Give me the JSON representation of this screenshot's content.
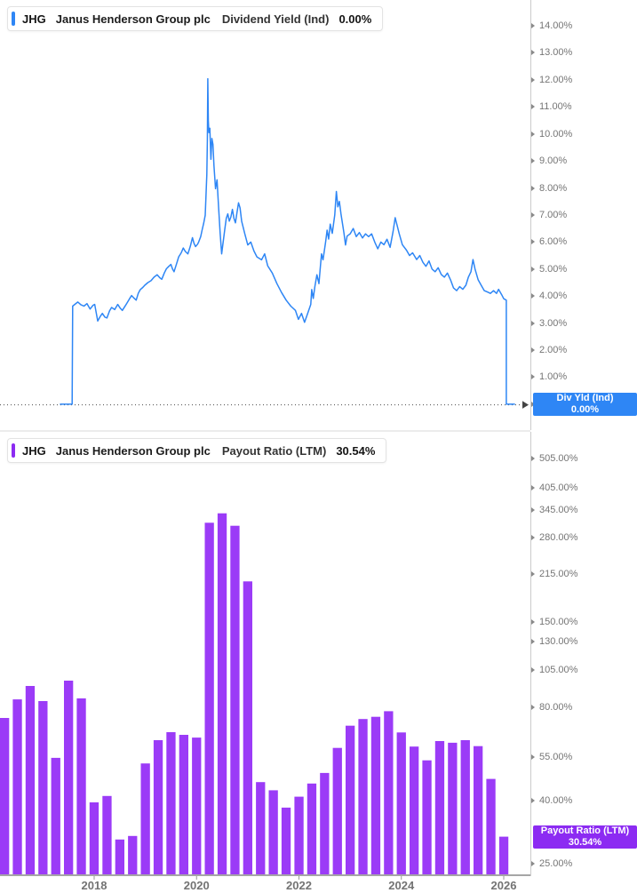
{
  "colors": {
    "line_blue": "#2E86F5",
    "badge_blue": "#2E86F5",
    "bar_purple": "#9B3BF7",
    "badge_purple": "#8C2BF2",
    "accent_blue": "#2E86F5",
    "accent_purple": "#8C2BF2",
    "axis_label": "#757575",
    "axis_line": "#cbcbcb",
    "baseline": "#a6a6a6",
    "dotted_line": "#4a4a4a"
  },
  "panels": [
    {
      "header": {
        "ticker": "JHG",
        "company": "Janus Henderson Group plc",
        "metric": "Dividend Yield (Ind)",
        "value": "0.00%"
      },
      "badge": {
        "label": "Div Yld (Ind)",
        "value": "0.00%"
      }
    },
    {
      "header": {
        "ticker": "JHG",
        "company": "Janus Henderson Group plc",
        "metric": "Payout Ratio (LTM)",
        "value": "30.54%"
      },
      "badge": {
        "label": "Payout Ratio (LTM)",
        "value": "30.54%"
      }
    }
  ],
  "chart_data": [
    {
      "type": "line",
      "title": "JHG Dividend Yield (Ind)",
      "ylabel": "Dividend Yield %",
      "yticks": [
        14,
        13,
        12,
        11,
        10,
        9,
        8,
        7,
        6,
        5,
        4,
        3,
        2,
        1,
        0
      ],
      "ylim": [
        -0.9,
        15.0
      ],
      "x_range": [
        2016.16,
        2026.49
      ],
      "grid": false,
      "legend_position": "right-badge",
      "current_value": 0.0,
      "series": [
        {
          "name": "Div Yld (Ind)",
          "points": [
            [
              2017.33,
              0
            ],
            [
              2017.57,
              0
            ],
            [
              2017.58,
              3.63
            ],
            [
              2017.68,
              3.78
            ],
            [
              2017.74,
              3.68
            ],
            [
              2017.8,
              3.63
            ],
            [
              2017.86,
              3.72
            ],
            [
              2017.92,
              3.52
            ],
            [
              2017.98,
              3.66
            ],
            [
              2018.01,
              3.69
            ],
            [
              2018.07,
              3.08
            ],
            [
              2018.12,
              3.25
            ],
            [
              2018.16,
              3.36
            ],
            [
              2018.21,
              3.22
            ],
            [
              2018.25,
              3.19
            ],
            [
              2018.3,
              3.45
            ],
            [
              2018.34,
              3.58
            ],
            [
              2018.4,
              3.5
            ],
            [
              2018.46,
              3.69
            ],
            [
              2018.51,
              3.55
            ],
            [
              2018.55,
              3.47
            ],
            [
              2018.6,
              3.62
            ],
            [
              2018.64,
              3.74
            ],
            [
              2018.69,
              3.9
            ],
            [
              2018.73,
              4.02
            ],
            [
              2018.78,
              3.92
            ],
            [
              2018.82,
              3.85
            ],
            [
              2018.86,
              4.1
            ],
            [
              2018.9,
              4.24
            ],
            [
              2018.95,
              4.32
            ],
            [
              2018.99,
              4.4
            ],
            [
              2019.05,
              4.5
            ],
            [
              2019.11,
              4.57
            ],
            [
              2019.17,
              4.7
            ],
            [
              2019.23,
              4.79
            ],
            [
              2019.28,
              4.68
            ],
            [
              2019.32,
              4.62
            ],
            [
              2019.37,
              4.85
            ],
            [
              2019.41,
              5.01
            ],
            [
              2019.46,
              5.1
            ],
            [
              2019.5,
              5.17
            ],
            [
              2019.53,
              5.0
            ],
            [
              2019.56,
              4.9
            ],
            [
              2019.61,
              5.2
            ],
            [
              2019.65,
              5.45
            ],
            [
              2019.7,
              5.6
            ],
            [
              2019.74,
              5.78
            ],
            [
              2019.78,
              5.65
            ],
            [
              2019.83,
              5.56
            ],
            [
              2019.88,
              5.85
            ],
            [
              2019.92,
              6.16
            ],
            [
              2019.95,
              5.95
            ],
            [
              2019.98,
              5.83
            ],
            [
              2020.02,
              5.92
            ],
            [
              2020.04,
              6.0
            ],
            [
              2020.08,
              6.2
            ],
            [
              2020.11,
              6.46
            ],
            [
              2020.14,
              6.7
            ],
            [
              2020.17,
              6.99
            ],
            [
              2020.2,
              8.5
            ],
            [
              2020.21,
              9.72
            ],
            [
              2020.22,
              12.04
            ],
            [
              2020.23,
              10.5
            ],
            [
              2020.24,
              10.05
            ],
            [
              2020.26,
              10.21
            ],
            [
              2020.28,
              9.06
            ],
            [
              2020.3,
              9.83
            ],
            [
              2020.32,
              9.61
            ],
            [
              2020.34,
              8.84
            ],
            [
              2020.37,
              7.97
            ],
            [
              2020.4,
              8.3
            ],
            [
              2020.43,
              7.31
            ],
            [
              2020.46,
              6.32
            ],
            [
              2020.49,
              5.56
            ],
            [
              2020.52,
              6.0
            ],
            [
              2020.55,
              6.44
            ],
            [
              2020.58,
              6.88
            ],
            [
              2020.61,
              7.04
            ],
            [
              2020.64,
              6.77
            ],
            [
              2020.67,
              6.93
            ],
            [
              2020.7,
              7.21
            ],
            [
              2020.73,
              6.88
            ],
            [
              2020.76,
              6.71
            ],
            [
              2020.79,
              7.1
            ],
            [
              2020.82,
              7.45
            ],
            [
              2020.85,
              7.26
            ],
            [
              2020.88,
              6.77
            ],
            [
              2020.94,
              6.32
            ],
            [
              2021.0,
              5.89
            ],
            [
              2021.06,
              6.0
            ],
            [
              2021.12,
              5.67
            ],
            [
              2021.18,
              5.45
            ],
            [
              2021.27,
              5.34
            ],
            [
              2021.33,
              5.56
            ],
            [
              2021.39,
              5.12
            ],
            [
              2021.48,
              4.85
            ],
            [
              2021.57,
              4.46
            ],
            [
              2021.66,
              4.13
            ],
            [
              2021.75,
              3.85
            ],
            [
              2021.84,
              3.63
            ],
            [
              2021.93,
              3.47
            ],
            [
              2021.99,
              3.14
            ],
            [
              2022.05,
              3.36
            ],
            [
              2022.11,
              3.03
            ],
            [
              2022.17,
              3.36
            ],
            [
              2022.23,
              3.69
            ],
            [
              2022.25,
              4.24
            ],
            [
              2022.28,
              3.91
            ],
            [
              2022.31,
              4.35
            ],
            [
              2022.35,
              4.79
            ],
            [
              2022.39,
              4.46
            ],
            [
              2022.42,
              5.12
            ],
            [
              2022.44,
              5.56
            ],
            [
              2022.47,
              5.34
            ],
            [
              2022.52,
              6.0
            ],
            [
              2022.55,
              6.44
            ],
            [
              2022.58,
              6.11
            ],
            [
              2022.61,
              6.66
            ],
            [
              2022.65,
              6.32
            ],
            [
              2022.7,
              7.0
            ],
            [
              2022.73,
              7.87
            ],
            [
              2022.76,
              7.3
            ],
            [
              2022.79,
              7.5
            ],
            [
              2022.82,
              7.04
            ],
            [
              2022.88,
              6.32
            ],
            [
              2022.91,
              5.89
            ],
            [
              2022.94,
              6.22
            ],
            [
              2023.0,
              6.3
            ],
            [
              2023.06,
              6.5
            ],
            [
              2023.12,
              6.2
            ],
            [
              2023.18,
              6.35
            ],
            [
              2023.24,
              6.15
            ],
            [
              2023.3,
              6.3
            ],
            [
              2023.36,
              6.2
            ],
            [
              2023.42,
              6.3
            ],
            [
              2023.48,
              6.0
            ],
            [
              2023.54,
              5.75
            ],
            [
              2023.6,
              6.0
            ],
            [
              2023.66,
              5.9
            ],
            [
              2023.72,
              6.1
            ],
            [
              2023.78,
              5.8
            ],
            [
              2023.84,
              6.4
            ],
            [
              2023.88,
              6.9
            ],
            [
              2023.92,
              6.6
            ],
            [
              2023.96,
              6.3
            ],
            [
              2024.02,
              5.9
            ],
            [
              2024.1,
              5.7
            ],
            [
              2024.16,
              5.5
            ],
            [
              2024.22,
              5.6
            ],
            [
              2024.3,
              5.35
            ],
            [
              2024.36,
              5.5
            ],
            [
              2024.42,
              5.25
            ],
            [
              2024.48,
              5.1
            ],
            [
              2024.54,
              5.3
            ],
            [
              2024.6,
              5.0
            ],
            [
              2024.66,
              4.9
            ],
            [
              2024.72,
              5.05
            ],
            [
              2024.78,
              4.8
            ],
            [
              2024.84,
              4.7
            ],
            [
              2024.9,
              4.85
            ],
            [
              2024.96,
              4.6
            ],
            [
              2025.02,
              4.3
            ],
            [
              2025.08,
              4.2
            ],
            [
              2025.14,
              4.35
            ],
            [
              2025.2,
              4.25
            ],
            [
              2025.26,
              4.4
            ],
            [
              2025.31,
              4.7
            ],
            [
              2025.36,
              4.9
            ],
            [
              2025.4,
              5.35
            ],
            [
              2025.44,
              5.0
            ],
            [
              2025.5,
              4.6
            ],
            [
              2025.56,
              4.4
            ],
            [
              2025.62,
              4.2
            ],
            [
              2025.68,
              4.15
            ],
            [
              2025.74,
              4.1
            ],
            [
              2025.8,
              4.2
            ],
            [
              2025.86,
              4.1
            ],
            [
              2025.9,
              4.25
            ],
            [
              2025.96,
              4.05
            ],
            [
              2026.0,
              3.9
            ],
            [
              2026.05,
              3.85
            ],
            [
              2026.05,
              0
            ],
            [
              2026.22,
              0
            ]
          ]
        }
      ]
    },
    {
      "type": "bar",
      "title": "JHG Payout Ratio (LTM)",
      "ylabel": "Payout Ratio %",
      "yscale": "log",
      "yticks": [
        505,
        405,
        345,
        280,
        215,
        150,
        130,
        105,
        80,
        55,
        40,
        25
      ],
      "ylim_log_anchor": {
        "value": 25,
        "span_ratio": 20.2
      },
      "xticks": [
        2018,
        2020,
        2022,
        2024,
        2026
      ],
      "grid": false,
      "legend_position": "right-badge",
      "current_value": 30.54,
      "categories": [
        "Q1 2016",
        "Q2 2016",
        "Q3 2016",
        "Q4 2016",
        "Q1 2017",
        "Q2 2017",
        "Q3 2017",
        "Q4 2017",
        "Q1 2018",
        "Q2 2018",
        "Q3 2018",
        "Q4 2018",
        "Q1 2019",
        "Q2 2019",
        "Q3 2019",
        "Q4 2019",
        "Q1 2020",
        "Q2 2020",
        "Q3 2020",
        "Q4 2020",
        "Q1 2021",
        "Q2 2021",
        "Q3 2021",
        "Q4 2021",
        "Q1 2022",
        "Q2 2022",
        "Q3 2022",
        "Q4 2022",
        "Q1 2023",
        "Q2 2023",
        "Q3 2023",
        "Q4 2023",
        "Q1 2024",
        "Q2 2024",
        "Q3 2024",
        "Q4 2024",
        "Q1 2025",
        "Q2 2025",
        "Q3 2025",
        "Q4 2025"
      ],
      "values": [
        73.7,
        84.6,
        93.4,
        83.5,
        54.8,
        97.2,
        85.2,
        39.4,
        41.3,
        29.9,
        30.7,
        52.6,
        62.5,
        66.3,
        65.0,
        63.7,
        313.6,
        336.2,
        306.7,
        202.9,
        45.8,
        43.1,
        37.9,
        41.1,
        45.3,
        49.0,
        59.0,
        69.6,
        73.1,
        74.3,
        77.5,
        66.2,
        59.6,
        53.8,
        62.1,
        61.3,
        62.5,
        59.8,
        46.9,
        30.54
      ]
    }
  ]
}
